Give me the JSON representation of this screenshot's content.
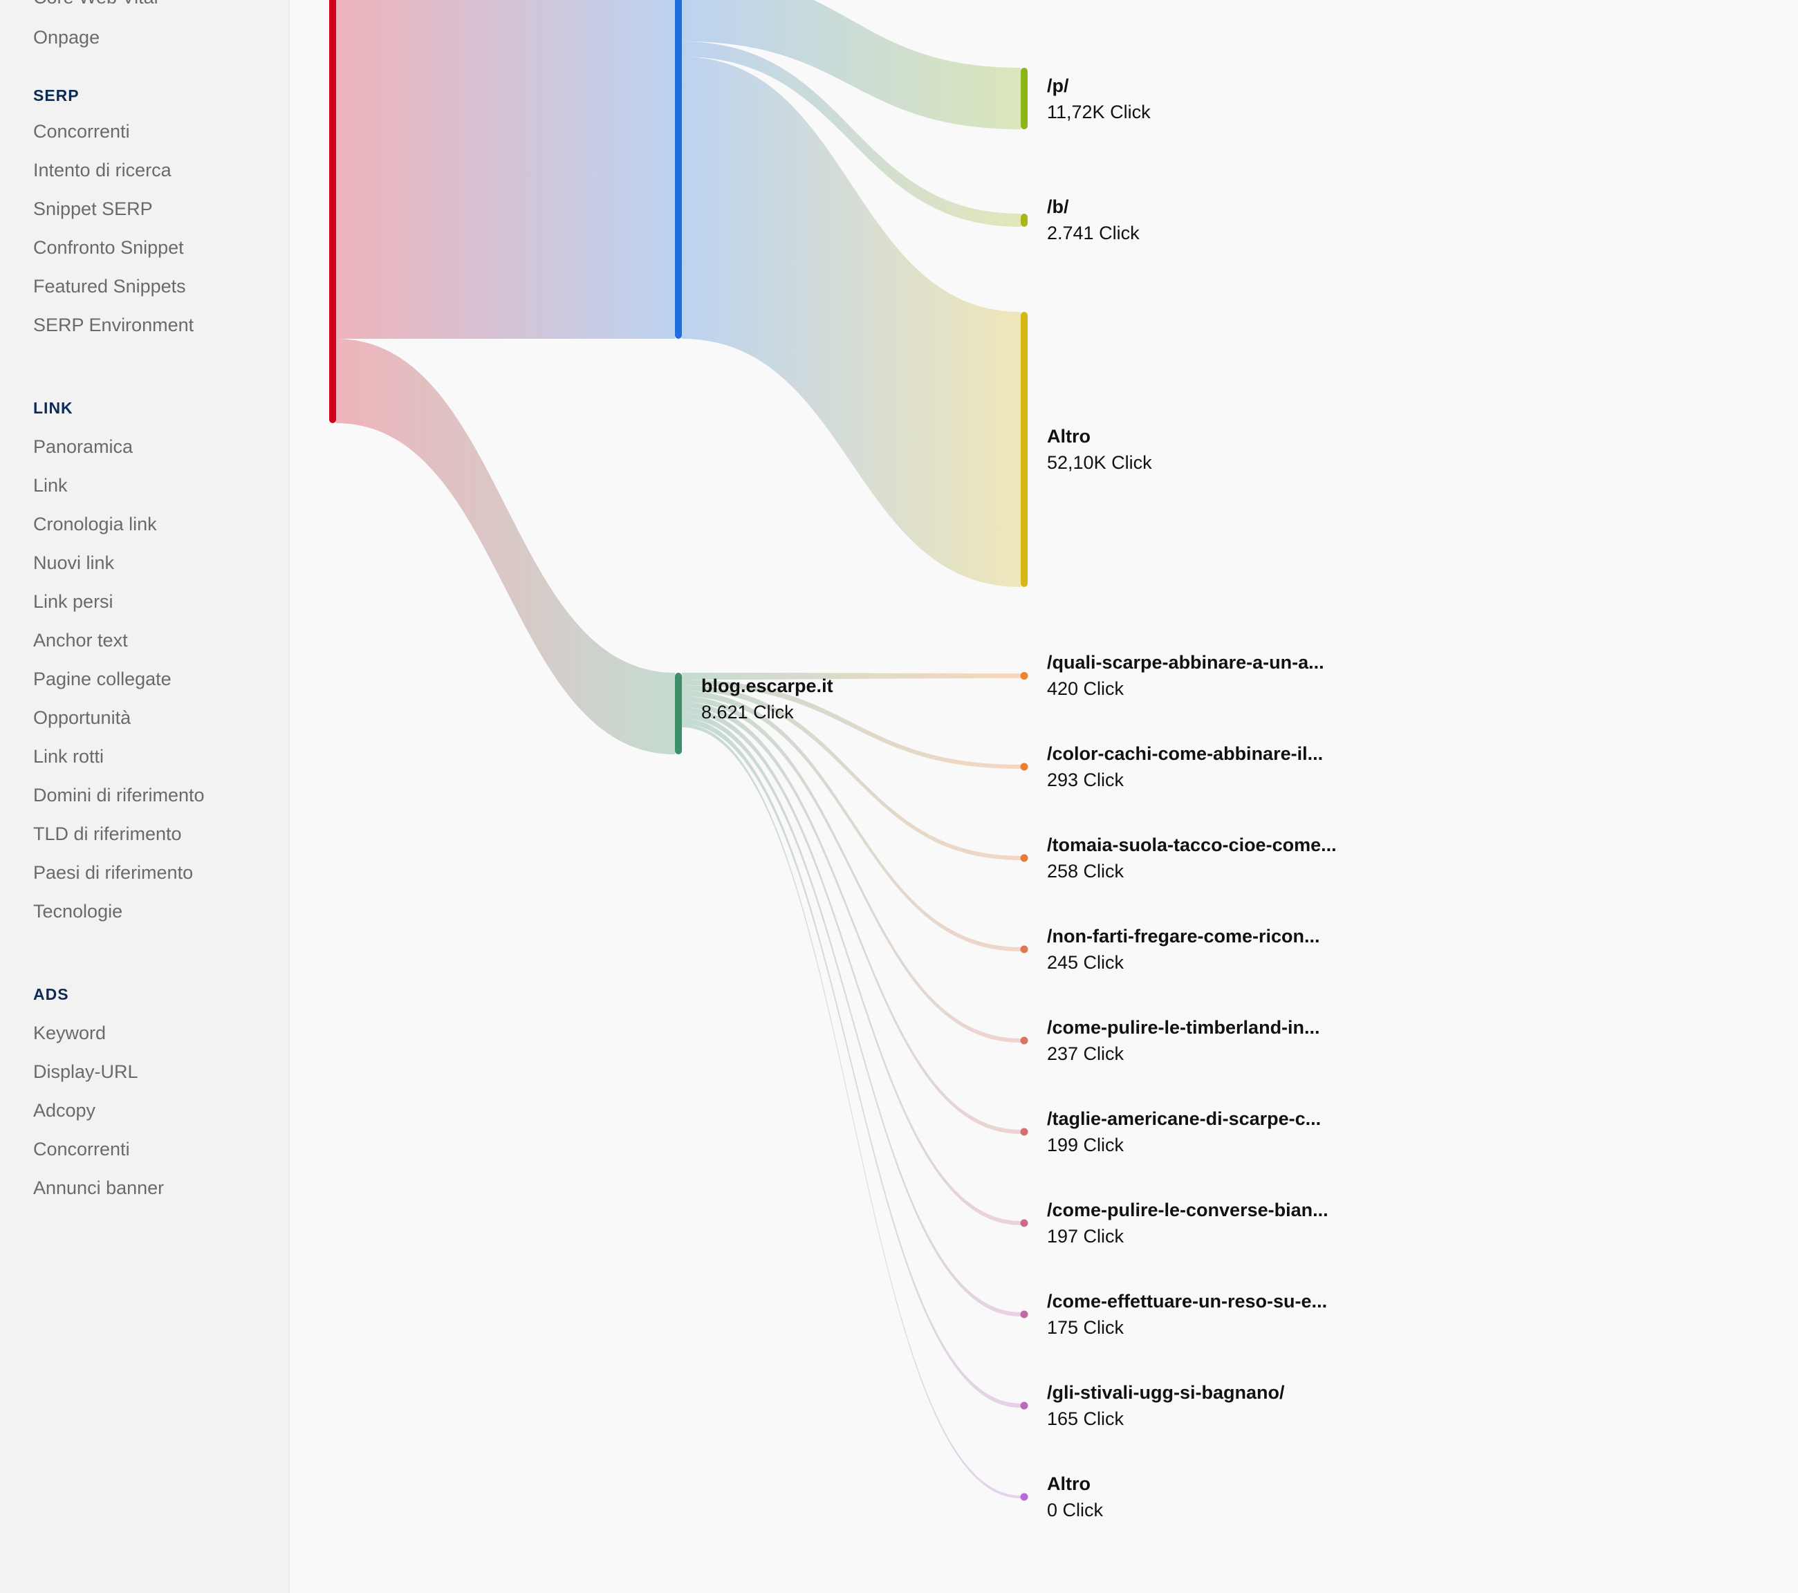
{
  "sidebar": {
    "sections": [
      {
        "heading": "",
        "items": [
          "Core Web Vital",
          "Onpage"
        ]
      },
      {
        "heading": "SERP",
        "items": [
          "Concorrenti",
          "Intento di ricerca",
          "Snippet SERP",
          "Confronto Snippet",
          "Featured Snippets",
          "SERP Environment"
        ]
      },
      {
        "heading": "LINK",
        "items": [
          "Panoramica",
          "Link",
          "Cronologia link",
          "Nuovi link",
          "Link persi",
          "Anchor text",
          "Pagine collegate",
          "Opportunità",
          "Link rotti",
          "Domini di riferimento",
          "TLD di riferimento",
          "Paesi di riferimento",
          "Tecnologie"
        ]
      },
      {
        "heading": "ADS",
        "items": [
          "Keyword",
          "Display-URL",
          "Adcopy",
          "Concorrenti",
          "Annunci banner"
        ]
      }
    ]
  },
  "chart_data": {
    "type": "sankey",
    "unit": "Click",
    "nodes": [
      {
        "id": "root",
        "label": "",
        "value": null,
        "color": "#d0021b"
      },
      {
        "id": "main",
        "label": "",
        "value": null,
        "color": "#1e6fd9"
      },
      {
        "id": "blog",
        "label": "blog.escarpe.it",
        "value_text": "8.621 Click",
        "value": 8621,
        "color": "#3d8f69"
      },
      {
        "id": "p",
        "label": "/p/",
        "value_text": "11,72K Click",
        "value": 11720,
        "color": "#8db51a"
      },
      {
        "id": "b",
        "label": "/b/",
        "value_text": "2.741 Click",
        "value": 2741,
        "color": "#a6b816"
      },
      {
        "id": "altro1",
        "label": "Altro",
        "value_text": "52,10K Click",
        "value": 52100,
        "color": "#d5b716"
      },
      {
        "id": "t1",
        "label": "/quali-scarpe-abbinare-a-un-a...",
        "value_text": "420 Click",
        "value": 420,
        "color": "#f0822a"
      },
      {
        "id": "t2",
        "label": "/color-cachi-come-abbinare-il...",
        "value_text": "293 Click",
        "value": 293,
        "color": "#ea7f33"
      },
      {
        "id": "t3",
        "label": "/tomaia-suola-tacco-cioe-come...",
        "value_text": "258 Click",
        "value": 258,
        "color": "#e67c3c"
      },
      {
        "id": "t4",
        "label": "/non-farti-fregare-come-ricon...",
        "value_text": "245 Click",
        "value": 245,
        "color": "#df7853"
      },
      {
        "id": "t5",
        "label": "/come-pulire-le-timberland-in...",
        "value_text": "237 Click",
        "value": 237,
        "color": "#d87462"
      },
      {
        "id": "t6",
        "label": "/taglie-americane-di-scarpe-c...",
        "value_text": "199 Click",
        "value": 199,
        "color": "#d07073"
      },
      {
        "id": "t7",
        "label": "/come-pulire-le-converse-bian...",
        "value_text": "197 Click",
        "value": 197,
        "color": "#c96c8a"
      },
      {
        "id": "t8",
        "label": "/come-effettuare-un-reso-su-e...",
        "value_text": "175 Click",
        "value": 175,
        "color": "#c26aa4"
      },
      {
        "id": "t9",
        "label": "/gli-stivali-ugg-si-bagnano/",
        "value_text": "165 Click",
        "value": 165,
        "color": "#bb69bd"
      },
      {
        "id": "t10",
        "label": "Altro",
        "value_text": "0 Click",
        "value": 0,
        "color": "#b86ad6"
      }
    ],
    "links": [
      {
        "source": "root",
        "target": "main"
      },
      {
        "source": "root",
        "target": "blog",
        "value": 8621
      },
      {
        "source": "main",
        "target": "p",
        "value": 11720
      },
      {
        "source": "main",
        "target": "b",
        "value": 2741
      },
      {
        "source": "main",
        "target": "altro1",
        "value": 52100
      },
      {
        "source": "blog",
        "target": "t1",
        "value": 420
      },
      {
        "source": "blog",
        "target": "t2",
        "value": 293
      },
      {
        "source": "blog",
        "target": "t3",
        "value": 258
      },
      {
        "source": "blog",
        "target": "t4",
        "value": 245
      },
      {
        "source": "blog",
        "target": "t5",
        "value": 237
      },
      {
        "source": "blog",
        "target": "t6",
        "value": 199
      },
      {
        "source": "blog",
        "target": "t7",
        "value": 197
      },
      {
        "source": "blog",
        "target": "t8",
        "value": 175
      },
      {
        "source": "blog",
        "target": "t9",
        "value": 165
      },
      {
        "source": "blog",
        "target": "t10",
        "value": 0
      }
    ]
  }
}
